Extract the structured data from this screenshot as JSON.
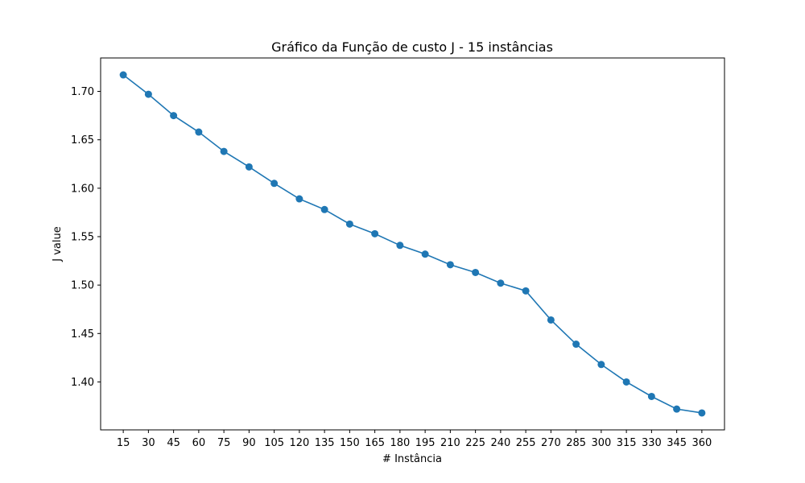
{
  "chart_data": {
    "type": "line",
    "title": "Gráfico da Função de custo J - 15 instâncias",
    "xlabel": "# Instância",
    "ylabel": "J value",
    "x": [
      15,
      30,
      45,
      60,
      75,
      90,
      105,
      120,
      135,
      150,
      165,
      180,
      195,
      210,
      225,
      240,
      255,
      270,
      285,
      300,
      315,
      330,
      345,
      360
    ],
    "x_tick_labels": [
      "15",
      "30",
      "45",
      "60",
      "75",
      "90",
      "105",
      "120",
      "135",
      "150",
      "165",
      "180",
      "195",
      "210",
      "225",
      "240",
      "255",
      "270",
      "285",
      "300",
      "315",
      "330",
      "345",
      "360"
    ],
    "series": [
      {
        "values": [
          1.717,
          1.697,
          1.675,
          1.658,
          1.638,
          1.622,
          1.605,
          1.589,
          1.578,
          1.563,
          1.553,
          1.541,
          1.532,
          1.521,
          1.513,
          1.502,
          1.494,
          1.464,
          1.439,
          1.418,
          1.4,
          1.385,
          1.372,
          1.368
        ],
        "color": "#1f77b4",
        "marker": "circle"
      }
    ],
    "y_ticks": [
      1.4,
      1.45,
      1.5,
      1.55,
      1.6,
      1.65,
      1.7
    ],
    "y_tick_labels": [
      "1.40",
      "1.45",
      "1.50",
      "1.55",
      "1.60",
      "1.65",
      "1.70"
    ],
    "xlim": [
      1.5,
      373.5
    ],
    "ylim": [
      1.3505,
      1.7345
    ],
    "grid": false,
    "legend": "none"
  }
}
